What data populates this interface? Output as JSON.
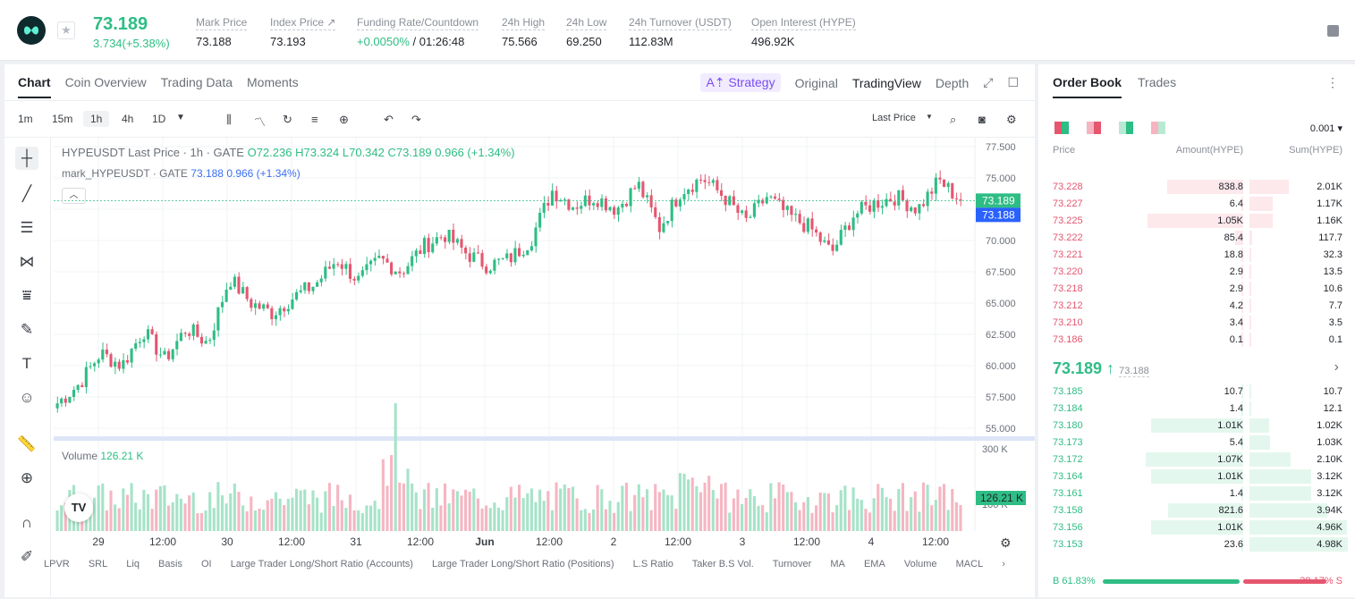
{
  "ticker": {
    "price": "73.189",
    "change": "3.734(+5.38%)"
  },
  "stats": [
    {
      "label": "Mark Price",
      "value": "73.188"
    },
    {
      "label": "Index Price ↗",
      "value": "73.193"
    },
    {
      "label": "Funding Rate/Countdown",
      "value_green": "+0.0050%",
      "value": " / 01:26:48"
    },
    {
      "label": "24h High",
      "value": "75.566"
    },
    {
      "label": "24h Low",
      "value": "69.250"
    },
    {
      "label": "24h Turnover (USDT)",
      "value": "112.83M"
    },
    {
      "label": "Open Interest (HYPE)",
      "value": "496.92K"
    }
  ],
  "tabs": [
    "Chart",
    "Coin Overview",
    "Trading Data",
    "Moments"
  ],
  "right_tabs": {
    "strategy": "A⇡ Strategy",
    "original": "Original",
    "tradingview": "TradingView",
    "depth": "Depth"
  },
  "timeframes": [
    "1m",
    "15m",
    "1h",
    "4h",
    "1D"
  ],
  "last_price_select": "Last Price",
  "legend": {
    "title": "HYPEUSDT Last Price · 1h · GATE",
    "o": "O72.236",
    "h": "H73.324",
    "l": "L70.342",
    "c": "C73.189",
    "delta": "0.966 (+1.34%)",
    "mark": "mark_HYPEUSDT · GATE",
    "mark_val": "73.188",
    "mark_delta": "0.966 (+1.34%)"
  },
  "volume": {
    "label": "Volume",
    "value": "126.21 K",
    "badge": "126.21 K",
    "scale_top": "300 K",
    "scale_mid": "100 K"
  },
  "price_badges": {
    "last": "73.189",
    "mark": "73.188"
  },
  "bottom_indicators": [
    "LPVR",
    "SRL",
    "Liq",
    "Basis",
    "OI",
    "Large Trader Long/Short Ratio (Accounts)",
    "Large Trader Long/Short Ratio (Positions)",
    "L.S Ratio",
    "Taker B.S Vol.",
    "Turnover",
    "MA",
    "EMA",
    "Volume",
    "MACL"
  ],
  "orderbook": {
    "tabs": [
      "Order Book",
      "Trades"
    ],
    "precision": "0.001",
    "headers": {
      "price": "Price",
      "amount": "Amount(HYPE)",
      "sum": "Sum(HYPE)"
    },
    "asks": [
      {
        "p": "73.228",
        "a": "838.8",
        "s": "2.01K"
      },
      {
        "p": "73.227",
        "a": "6.4",
        "s": "1.17K"
      },
      {
        "p": "73.225",
        "a": "1.05K",
        "s": "1.16K"
      },
      {
        "p": "73.222",
        "a": "85.4",
        "s": "117.7"
      },
      {
        "p": "73.221",
        "a": "18.8",
        "s": "32.3"
      },
      {
        "p": "73.220",
        "a": "2.9",
        "s": "13.5"
      },
      {
        "p": "73.218",
        "a": "2.9",
        "s": "10.6"
      },
      {
        "p": "73.212",
        "a": "4.2",
        "s": "7.7"
      },
      {
        "p": "73.210",
        "a": "3.4",
        "s": "3.5"
      },
      {
        "p": "73.186",
        "a": "0.1",
        "s": "0.1"
      }
    ],
    "mid": "73.189 ↑",
    "mid_mark": "73.188",
    "bids": [
      {
        "p": "73.185",
        "a": "10.7",
        "s": "10.7"
      },
      {
        "p": "73.184",
        "a": "1.4",
        "s": "12.1"
      },
      {
        "p": "73.180",
        "a": "1.01K",
        "s": "1.02K"
      },
      {
        "p": "73.173",
        "a": "5.4",
        "s": "1.03K"
      },
      {
        "p": "73.172",
        "a": "1.07K",
        "s": "2.10K"
      },
      {
        "p": "73.164",
        "a": "1.01K",
        "s": "3.12K"
      },
      {
        "p": "73.161",
        "a": "1.4",
        "s": "3.12K"
      },
      {
        "p": "73.158",
        "a": "821.6",
        "s": "3.94K"
      },
      {
        "p": "73.156",
        "a": "1.01K",
        "s": "4.96K"
      },
      {
        "p": "73.153",
        "a": "23.6",
        "s": "4.98K"
      }
    ],
    "buy_ratio": "B 61.83%",
    "sell_ratio": "38.17% S"
  },
  "chart_data": {
    "type": "candlestick",
    "y_ticks": [
      "77.500",
      "75.000",
      "72.500",
      "70.000",
      "67.500",
      "65.000",
      "62.500",
      "60.000",
      "57.500",
      "55.000"
    ],
    "x_ticks": [
      "29",
      "12:00",
      "30",
      "12:00",
      "31",
      "12:00",
      "Jun",
      "12:00",
      "2",
      "12:00",
      "3",
      "12:00",
      "4",
      "12:00"
    ],
    "ylim": [
      55,
      77.5
    ],
    "close_path": [
      57.0,
      58.5,
      61.0,
      60.0,
      62.8,
      60.5,
      63.0,
      61.8,
      67.0,
      65.0,
      64.2,
      65.5,
      66.5,
      68.5,
      66.8,
      68.5,
      67.5,
      69.5,
      70.5,
      69.0,
      68.0,
      68.5,
      70.0,
      74.0,
      72.8,
      73.5,
      72.5,
      74.5,
      71.0,
      74.0,
      75.0,
      73.5,
      71.5,
      73.5,
      72.0,
      71.0,
      69.0,
      72.0,
      73.0,
      73.5,
      72.5,
      74.8,
      73.2
    ],
    "volume_peak": "300 K"
  }
}
